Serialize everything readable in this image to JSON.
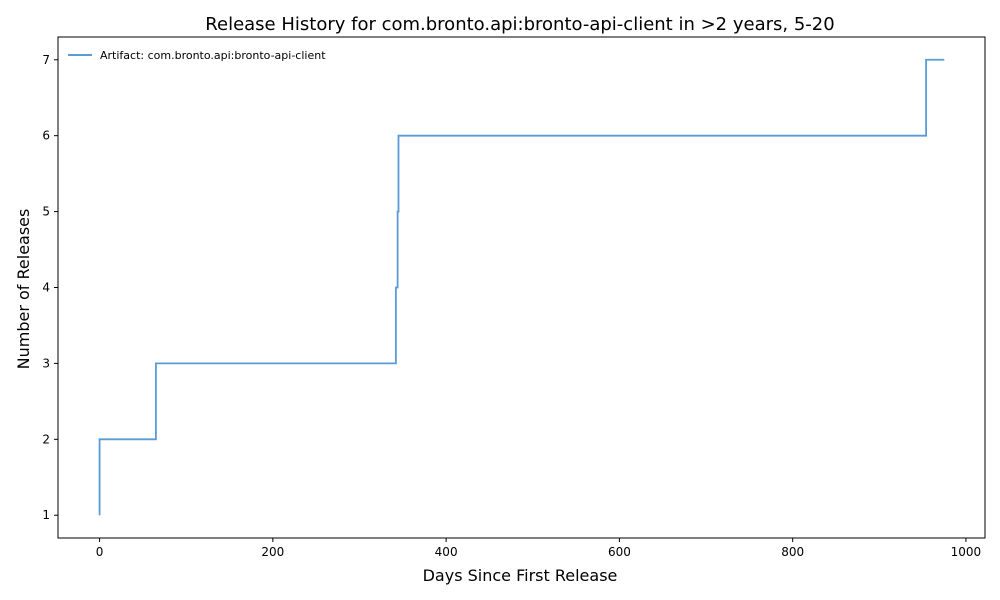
{
  "chart_data": {
    "type": "line",
    "step": "post",
    "title": "Release History for com.bronto.api:bronto-api-client in >2 years, 5-20",
    "xlabel": "Days Since First Release",
    "ylabel": "Number of Releases",
    "xlim": [
      -48,
      1022
    ],
    "ylim": [
      0.7,
      7.3
    ],
    "xticks": [
      0,
      200,
      400,
      600,
      800,
      1000
    ],
    "yticks": [
      1,
      2,
      3,
      4,
      5,
      6,
      7
    ],
    "grid": false,
    "legend_position": "top-left",
    "series": [
      {
        "name": "Artifact: com.bronto.api:bronto-api-client",
        "color": "#5b9bd5",
        "x": [
          0,
          0,
          65,
          342,
          344,
          345,
          954,
          975
        ],
        "y": [
          1,
          2,
          3,
          4,
          5,
          6,
          7,
          7
        ]
      }
    ]
  }
}
